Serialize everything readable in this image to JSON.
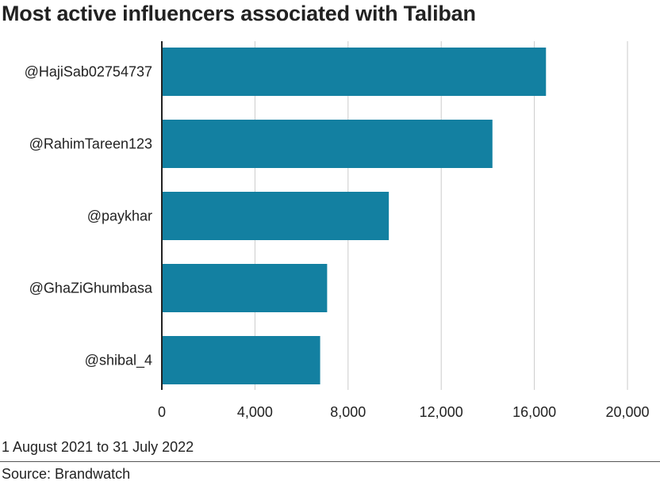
{
  "chart_data": {
    "type": "bar",
    "orientation": "horizontal",
    "title": "Most active influencers associated with Taliban",
    "categories": [
      "@HajiSab02754737",
      "@RahimTareen123",
      "@paykhar",
      "@GhaZiGhumbasa",
      "@shibal_4"
    ],
    "values": [
      16500,
      14200,
      9750,
      7100,
      6800
    ],
    "xlim": [
      0,
      20000
    ],
    "xticks": [
      0,
      4000,
      8000,
      12000,
      16000,
      20000
    ],
    "xtick_labels": [
      "0",
      "4,000",
      "8,000",
      "12,000",
      "16,000",
      "20,000"
    ],
    "xlabel": "",
    "ylabel": "",
    "grid": true,
    "bar_color": "#1380A1",
    "grid_color": "#CBCBCB"
  },
  "footer": {
    "note": "1 August 2021 to 31 July 2022",
    "source": "Source: Brandwatch"
  }
}
